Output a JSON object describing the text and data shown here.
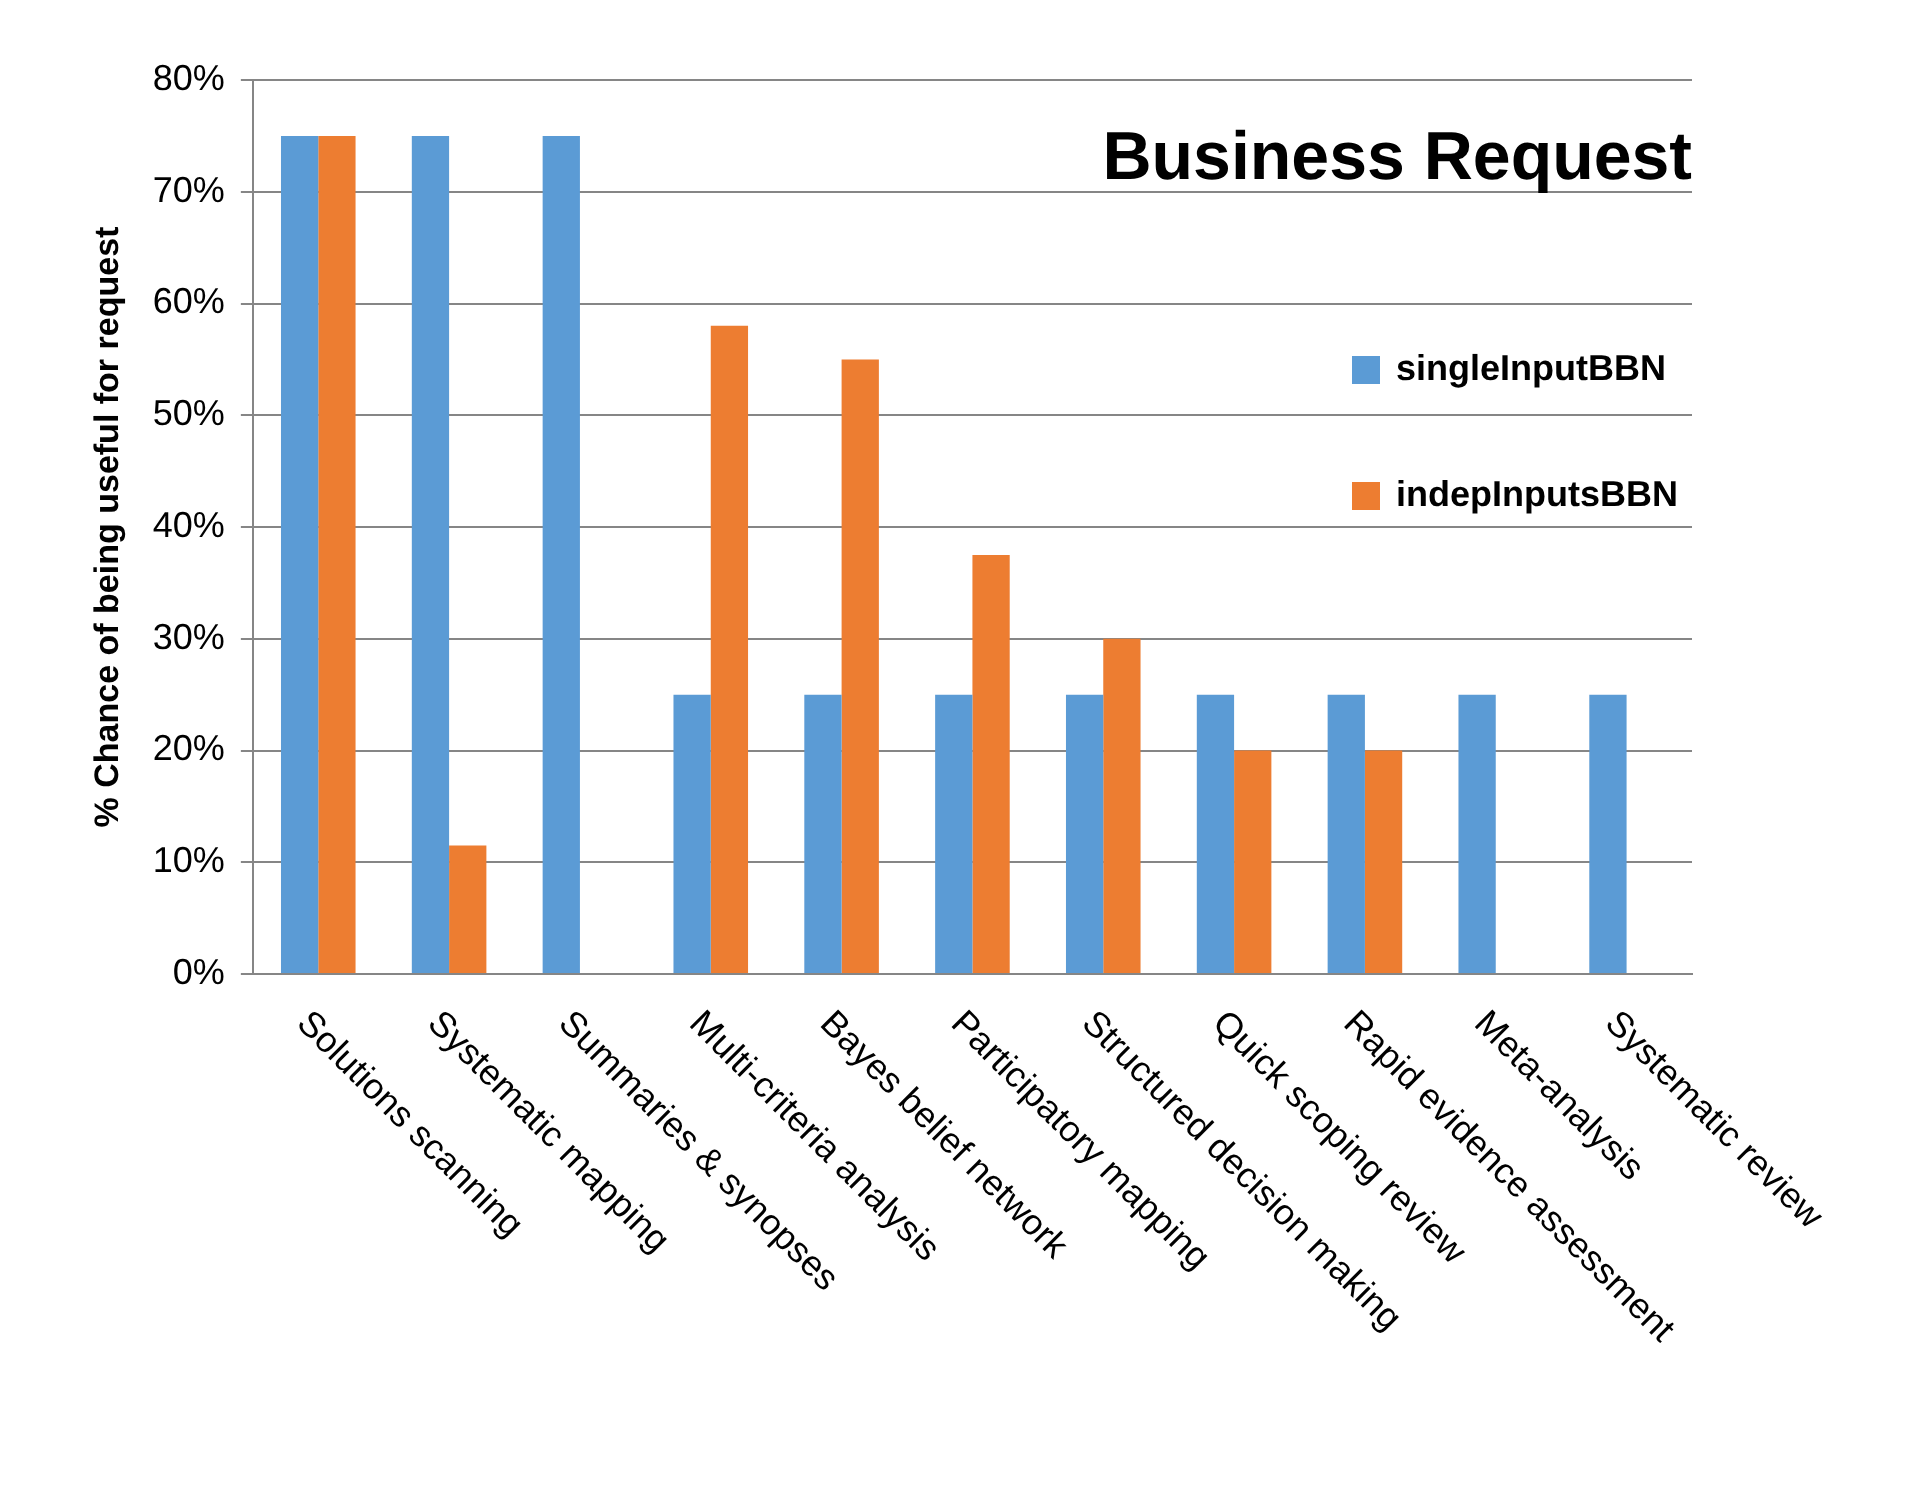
{
  "chart_data": {
    "type": "bar",
    "title": "Business Request",
    "ylabel": "% Chance of being useful for request",
    "categories": [
      "Solutions scanning",
      "Systematic mapping",
      "Summaries & synopses",
      "Multi-criteria analysis",
      "Bayes belief network",
      "Participatory mapping",
      "Structured decision making",
      "Quick scoping review",
      "Rapid evidence assessment",
      "Meta-analysis",
      "Systematic review"
    ],
    "series": [
      {
        "name": "singleInputBBN",
        "color": "#5b9bd5",
        "values": [
          75,
          75,
          75,
          25,
          25,
          25,
          25,
          25,
          25,
          25,
          25
        ]
      },
      {
        "name": "indepInputsBBN",
        "color": "#ed7d31",
        "values": [
          75,
          11.5,
          0,
          58,
          55,
          37.5,
          30,
          20,
          20,
          0,
          0
        ]
      }
    ],
    "ylim": [
      0,
      80
    ],
    "yticks": [
      {
        "value": 0,
        "label": "0%"
      },
      {
        "value": 10,
        "label": "10%"
      },
      {
        "value": 20,
        "label": "20%"
      },
      {
        "value": 30,
        "label": "30%"
      },
      {
        "value": 40,
        "label": "40%"
      },
      {
        "value": 50,
        "label": "50%"
      },
      {
        "value": 60,
        "label": "60%"
      },
      {
        "value": 70,
        "label": "70%"
      },
      {
        "value": 80,
        "label": "80%"
      }
    ],
    "grid": "y",
    "legend": "right"
  }
}
